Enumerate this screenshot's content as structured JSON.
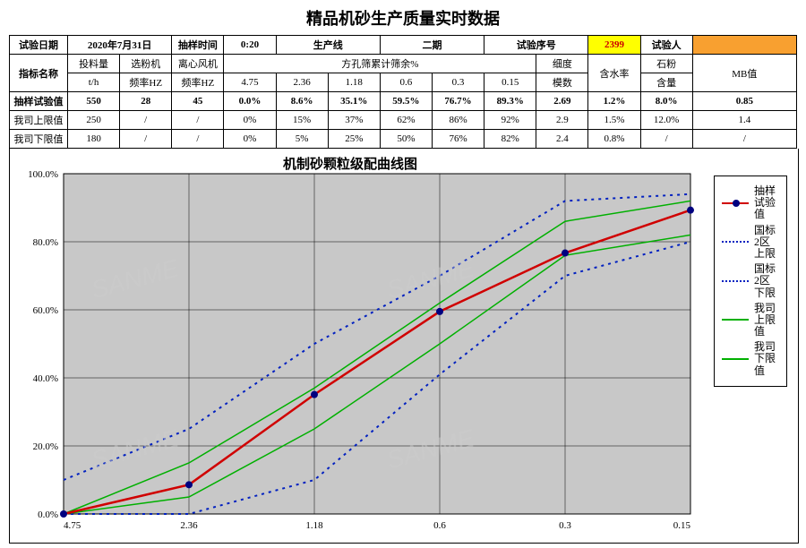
{
  "title": "精品机砂生产质量实时数据",
  "header": {
    "date_label": "试验日期",
    "date": "2020年7月31日",
    "time_label": "抽样时间",
    "time": "0:20",
    "line_label": "生产线",
    "line": "二期",
    "seq_label": "试验序号",
    "seq": "2399",
    "tester_label": "试验人",
    "tester": ""
  },
  "col_labels": {
    "name": "指标名称",
    "feed": "投料量",
    "feed_unit": "t/h",
    "sel": "选粉机",
    "sel_unit": "频率HZ",
    "fan": "离心风机",
    "fan_unit": "频率HZ",
    "sieve_head": "方孔筛累计筛余%",
    "fm": "细度",
    "fm2": "模数",
    "water": "含水率",
    "powder": "石粉",
    "powder2": "含量",
    "mb": "MB值"
  },
  "sieve_sizes": [
    "4.75",
    "2.36",
    "1.18",
    "0.6",
    "0.3",
    "0.15"
  ],
  "rows": {
    "sample": {
      "label": "抽样试验值",
      "feed": "550",
      "sel": "28",
      "fan": "45",
      "s": [
        "0.0%",
        "8.6%",
        "35.1%",
        "59.5%",
        "76.7%",
        "89.3%"
      ],
      "fm": "2.69",
      "water": "1.2%",
      "powder": "8.0%",
      "mb": "0.85"
    },
    "upper": {
      "label": "我司上限值",
      "feed": "250",
      "sel": "/",
      "fan": "/",
      "s": [
        "0%",
        "15%",
        "37%",
        "62%",
        "86%",
        "92%"
      ],
      "fm": "2.9",
      "water": "1.5%",
      "powder": "12.0%",
      "mb": "1.4"
    },
    "lower": {
      "label": "我司下限值",
      "feed": "180",
      "sel": "/",
      "fan": "/",
      "s": [
        "0%",
        "5%",
        "25%",
        "50%",
        "76%",
        "82%"
      ],
      "fm": "2.4",
      "water": "0.8%",
      "powder": "/",
      "mb": "/"
    }
  },
  "chart": {
    "title": "机制砂颗粒级配曲线图",
    "ylim": [
      0,
      100
    ],
    "ytick_step": 20,
    "y_format_suffix": ".0%",
    "x_categories": [
      "4.75",
      "2.36",
      "1.18",
      "0.6",
      "0.3",
      "0.15"
    ],
    "plot_bg": "#c8c8c8",
    "grid_color": "#000000",
    "series": {
      "sample": {
        "label": "抽样试验值",
        "color": "#d00000",
        "width": 2.5,
        "marker": "#000080",
        "values": [
          0,
          8.6,
          35.1,
          59.5,
          76.7,
          89.3
        ]
      },
      "gb_upper": {
        "label": "国标2区上限",
        "color": "#0020c0",
        "style": "dotted",
        "width": 2,
        "values": [
          10,
          25,
          50,
          70,
          92,
          94
        ]
      },
      "gb_lower": {
        "label": "国标2区下限",
        "color": "#0020c0",
        "style": "dotted",
        "width": 2,
        "values": [
          0,
          0,
          10,
          41,
          70,
          80
        ]
      },
      "co_upper": {
        "label": "我司上限值",
        "color": "#00b000",
        "width": 1.5,
        "values": [
          0,
          15,
          37,
          62,
          86,
          92
        ]
      },
      "co_lower": {
        "label": "我司下限值",
        "color": "#00b000",
        "width": 1.5,
        "values": [
          0,
          5,
          25,
          50,
          76,
          82
        ]
      }
    },
    "legend": [
      "sample",
      "gb_upper",
      "gb_lower",
      "co_upper",
      "co_lower"
    ]
  },
  "watermark": "SANME"
}
